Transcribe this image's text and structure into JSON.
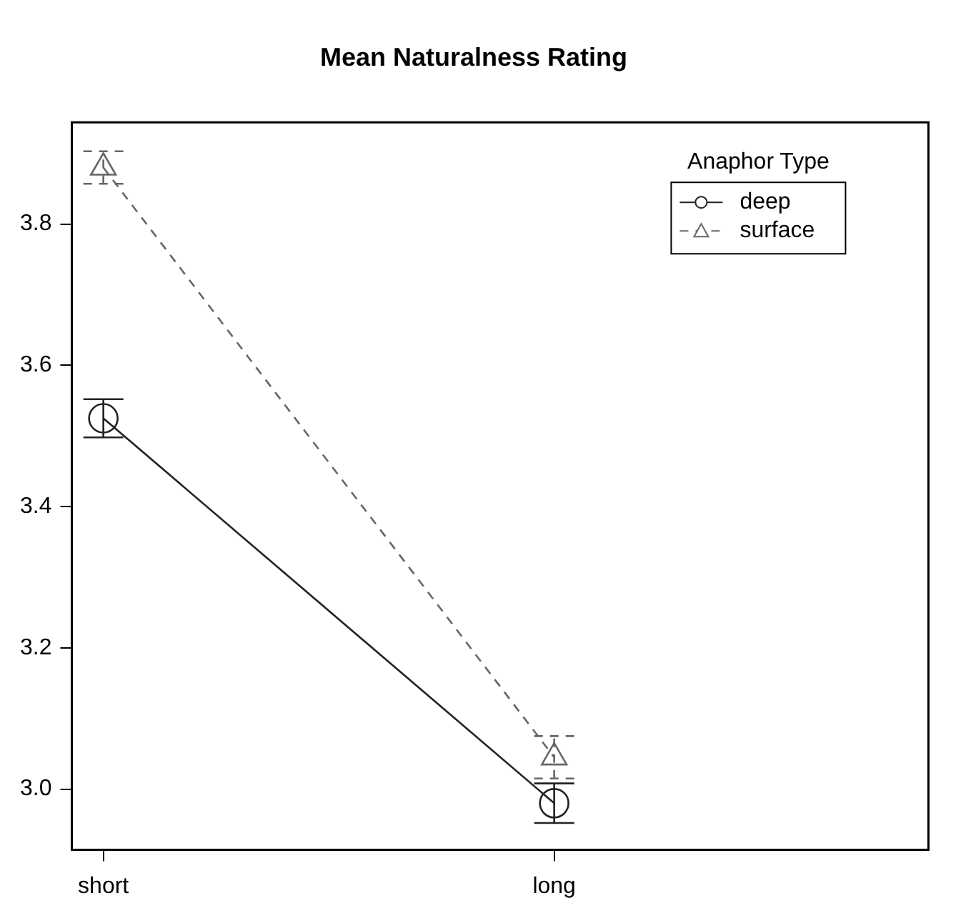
{
  "chart_data": {
    "type": "line",
    "title": "Mean Naturalness Rating",
    "categories": [
      "short",
      "long"
    ],
    "legend_title": "Anaphor Type",
    "legend": "top right",
    "series": [
      {
        "name": "deep",
        "color": "#222222",
        "values": [
          3.525,
          2.98
        ],
        "errors": [
          0.027,
          0.028
        ],
        "marker": "circle",
        "line_style": "solid"
      },
      {
        "name": "surface",
        "color": "#666666",
        "values": [
          3.88,
          3.045
        ],
        "errors": [
          0.023,
          0.03
        ],
        "marker": "triangle",
        "line_style": "dashed"
      }
    ],
    "ylim": [
      2.914,
      3.944
    ],
    "yticks": [
      {
        "value": 3,
        "label": "3.0"
      },
      3.2,
      3.4,
      3.6,
      3.8
    ],
    "grid": false
  }
}
